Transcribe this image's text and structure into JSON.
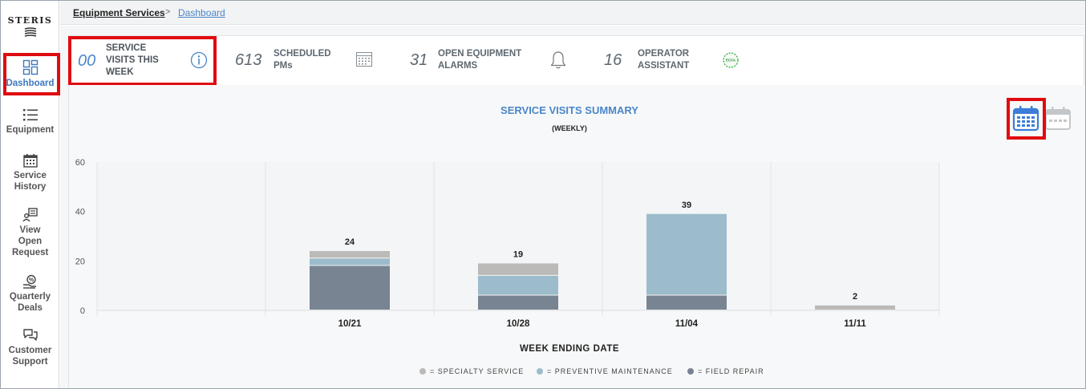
{
  "sidebar": {
    "logo": "STERIS",
    "items": [
      {
        "label": "Dashboard",
        "icon": "dashboard-icon",
        "active": true
      },
      {
        "label": "Equipment",
        "icon": "list-icon"
      },
      {
        "label": "Service History",
        "icon": "calendar-icon"
      },
      {
        "label": "View Open Request",
        "icon": "request-icon"
      },
      {
        "label": "Quarterly Deals",
        "icon": "deals-icon"
      },
      {
        "label": "Customer Support",
        "icon": "chat-icon"
      }
    ]
  },
  "breadcrumb": {
    "root": "Equipment Services",
    "separator": ">",
    "current": "Dashboard"
  },
  "stats": [
    {
      "value": "00",
      "label": "SERVICE VISITS THIS WEEK",
      "icon": "info-icon",
      "active": true
    },
    {
      "value": "613",
      "label": "SCHEDULED PMs",
      "icon": "calendar-grid-icon"
    },
    {
      "value": "31",
      "label": "OPEN EQUIPMENT ALARMS",
      "icon": "bell-icon"
    },
    {
      "value": "16",
      "label": "OPERATOR ASSISTANT",
      "icon": "ecfa-badge-icon",
      "badge_text": "ECFA"
    }
  ],
  "chart": {
    "title": "SERVICE VISITS SUMMARY",
    "subtitle": "(WEEKLY)",
    "xlabel": "WEEK ENDING DATE"
  },
  "colors": {
    "accent": "#4a86c8",
    "highlight": "#e00b10",
    "specialty": "#bcbab8",
    "preventive": "#9cbccb",
    "field_repair": "#788491"
  },
  "chart_data": {
    "type": "bar",
    "stacked": true,
    "title": "SERVICE VISITS SUMMARY",
    "subtitle": "(WEEKLY)",
    "xlabel": "WEEK ENDING DATE",
    "ylabel": "",
    "ylim": [
      0,
      60
    ],
    "yticks": [
      0,
      20,
      40,
      60
    ],
    "categories": [
      "10/21",
      "10/28",
      "11/04",
      "11/11"
    ],
    "totals": [
      24,
      19,
      39,
      2
    ],
    "series": [
      {
        "name": "FIELD REPAIR",
        "legend": "= FIELD REPAIR",
        "color": "#788491",
        "values": [
          18,
          6,
          6,
          0
        ]
      },
      {
        "name": "PREVENTIVE MAINTENANCE",
        "legend": "= PREVENTIVE MAINTENANCE",
        "color": "#9cbccb",
        "values": [
          3,
          8,
          33,
          0
        ]
      },
      {
        "name": "SPECIALTY SERVICE",
        "legend": "= SPECIALTY SERVICE",
        "color": "#bcbab8",
        "values": [
          3,
          5,
          0,
          2
        ]
      }
    ]
  }
}
